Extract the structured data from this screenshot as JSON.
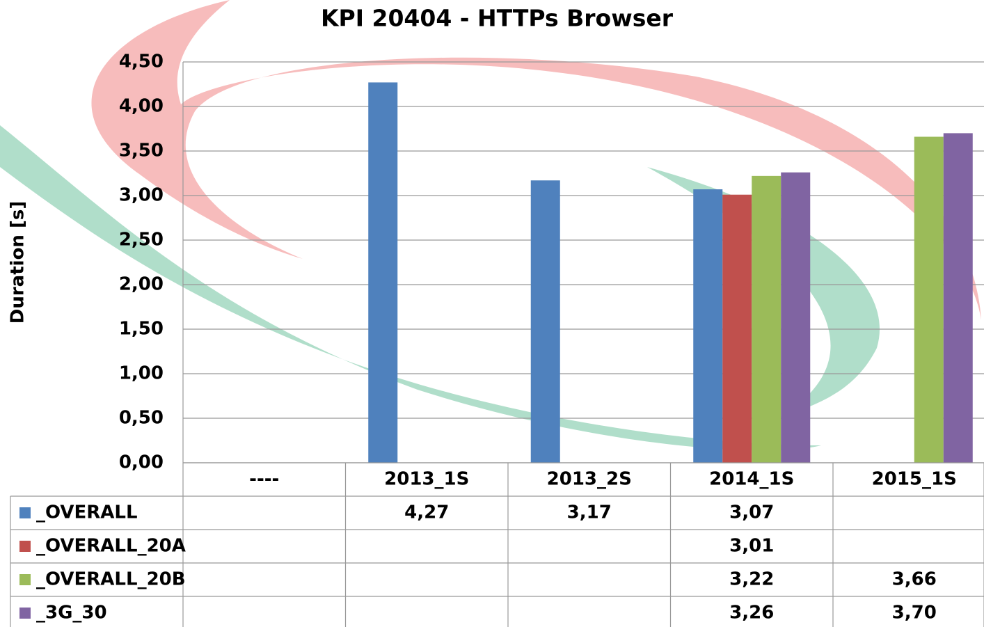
{
  "chart_data": {
    "type": "bar",
    "title": "KPI 20404 - HTTPs Browser",
    "y_label": "Duration [s]",
    "categories": [
      "----",
      "2013_1S",
      "2013_2S",
      "2014_1S",
      "2015_1S"
    ],
    "series": [
      {
        "name": "_OVERALL",
        "color": "#4f81bd",
        "values": [
          null,
          4.27,
          3.17,
          3.07,
          null
        ],
        "value_labels": [
          null,
          "4,27",
          "3,17",
          "3,07",
          null
        ]
      },
      {
        "name": "_OVERALL_20A",
        "color": "#c0504d",
        "values": [
          null,
          null,
          null,
          3.01,
          null
        ],
        "value_labels": [
          null,
          null,
          null,
          "3,01",
          null
        ]
      },
      {
        "name": "_OVERALL_20B",
        "color": "#9bbb59",
        "values": [
          null,
          null,
          null,
          3.22,
          3.66
        ],
        "value_labels": [
          null,
          null,
          null,
          "3,22",
          "3,66"
        ]
      },
      {
        "name": "_3G_30",
        "color": "#8064a2",
        "values": [
          null,
          null,
          null,
          3.26,
          3.7
        ],
        "value_labels": [
          null,
          null,
          null,
          "3,26",
          "3,70"
        ]
      }
    ],
    "ylim": [
      0,
      4.5
    ],
    "yticks": [
      {
        "value": 0,
        "label": "0,00"
      },
      {
        "value": 0.5,
        "label": "0,50"
      },
      {
        "value": 1,
        "label": "1,00"
      },
      {
        "value": 1.5,
        "label": "1,50"
      },
      {
        "value": 2,
        "label": "2,00"
      },
      {
        "value": 2.5,
        "label": "2,50"
      },
      {
        "value": 3,
        "label": "3,00"
      },
      {
        "value": 3.5,
        "label": "3,50"
      },
      {
        "value": 4,
        "label": "4,00"
      },
      {
        "value": 4.5,
        "label": "4,50"
      }
    ],
    "grid": true,
    "data_table": true
  }
}
